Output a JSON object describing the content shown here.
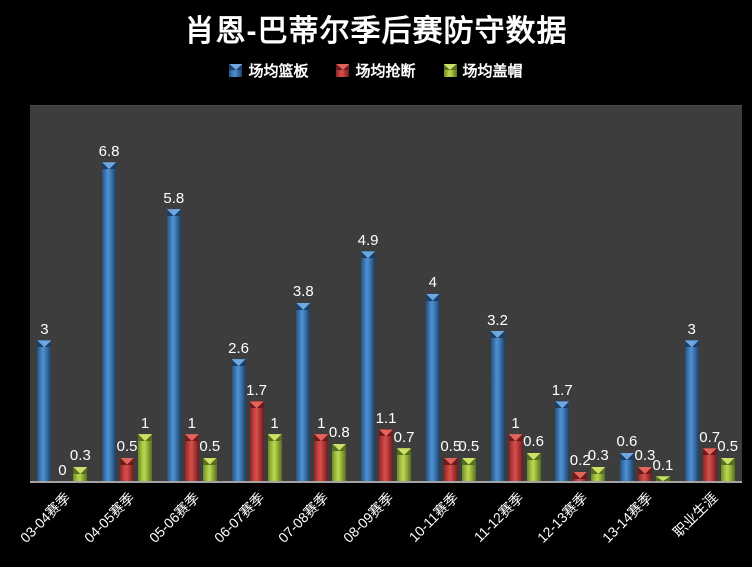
{
  "title": "肖恩-巴蒂尔季后赛防守数据",
  "colors": {
    "page_background": "#000000",
    "plot_background": "#3d3d3d",
    "axis_line": "#a3a3a3",
    "text": "#ffffff",
    "series_blue": "#4a8ccd",
    "series_red": "#d14c48",
    "series_green": "#b7d24c"
  },
  "chart_data": {
    "type": "bar",
    "title": "肖恩-巴蒂尔季后赛防守数据",
    "categories": [
      "03-04赛季",
      "04-05赛季",
      "05-06赛季",
      "06-07赛季",
      "07-08赛季",
      "08-09赛季",
      "10-11赛季",
      "11-12赛季",
      "12-13赛季",
      "13-14赛季",
      "职业生涯"
    ],
    "series": [
      {
        "name": "场均篮板",
        "color": "#4a8ccd",
        "color_dark": "#27527f",
        "cap_light": "#6fa8e0",
        "cap_dark": "#1d3f66",
        "values": [
          3,
          6.8,
          5.8,
          2.6,
          3.8,
          4.9,
          4,
          3.2,
          1.7,
          0.6,
          3
        ]
      },
      {
        "name": "场均抢断",
        "color": "#d14c48",
        "color_dark": "#8e2527",
        "cap_light": "#e0655c",
        "cap_dark": "#6e1a1c",
        "values": [
          0,
          0.5,
          1,
          1.7,
          1,
          1.1,
          0.5,
          1,
          0.2,
          0.3,
          0.7
        ]
      },
      {
        "name": "场均盖帽",
        "color": "#b7d24c",
        "color_dark": "#6e8c26",
        "cap_light": "#cfe06a",
        "cap_dark": "#55701c",
        "values": [
          0.3,
          1,
          0.5,
          1,
          0.8,
          0.7,
          0.5,
          0.6,
          0.3,
          0.1,
          0.5
        ]
      }
    ],
    "ylim": [
      0,
      8
    ],
    "grid": false,
    "legend_position": "top",
    "xlabel": "",
    "ylabel": ""
  }
}
